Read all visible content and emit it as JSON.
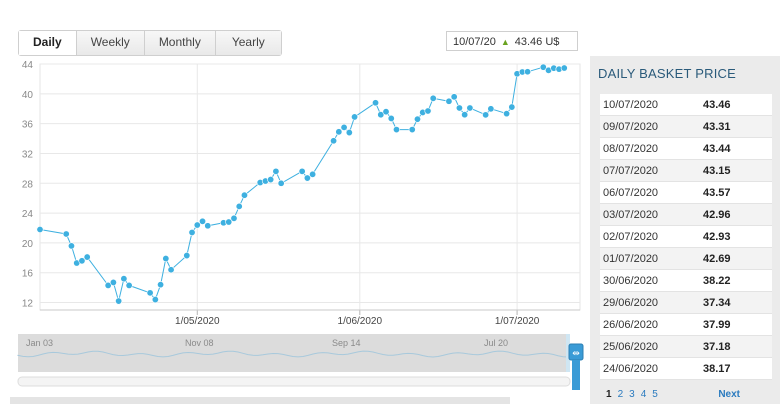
{
  "tabs": [
    {
      "label": "Daily",
      "active": true
    },
    {
      "label": "Weekly",
      "active": false
    },
    {
      "label": "Monthly",
      "active": false
    },
    {
      "label": "Yearly",
      "active": false
    }
  ],
  "price_box": {
    "date": "10/07/20",
    "value": "43.46 U$",
    "trend_icon": "triangle-up-icon",
    "trend_color": "#6aa321"
  },
  "chart_data": {
    "type": "line",
    "series_color": "#3eb0e0",
    "ylim": [
      11,
      44
    ],
    "yticks": [
      12,
      16,
      20,
      24,
      28,
      32,
      36,
      40,
      44
    ],
    "xlim": [
      "2020-04-01",
      "2020-07-13"
    ],
    "xticks": [
      {
        "date": "2020-05-01",
        "label": "1/05/2020"
      },
      {
        "date": "2020-06-01",
        "label": "1/06/2020"
      },
      {
        "date": "2020-07-01",
        "label": "1/07/2020"
      }
    ],
    "grid": true,
    "points": [
      [
        "2020-04-01",
        21.8
      ],
      [
        "2020-04-06",
        21.2
      ],
      [
        "2020-04-07",
        19.6
      ],
      [
        "2020-04-08",
        17.3
      ],
      [
        "2020-04-09",
        17.6
      ],
      [
        "2020-04-10",
        18.1
      ],
      [
        "2020-04-14",
        14.3
      ],
      [
        "2020-04-15",
        14.7
      ],
      [
        "2020-04-16",
        12.2
      ],
      [
        "2020-04-17",
        15.2
      ],
      [
        "2020-04-18",
        14.3
      ],
      [
        "2020-04-22",
        13.3
      ],
      [
        "2020-04-23",
        12.4
      ],
      [
        "2020-04-24",
        14.4
      ],
      [
        "2020-04-25",
        17.9
      ],
      [
        "2020-04-26",
        16.4
      ],
      [
        "2020-04-29",
        18.3
      ],
      [
        "2020-04-30",
        21.4
      ],
      [
        "2020-05-01",
        22.4
      ],
      [
        "2020-05-02",
        22.9
      ],
      [
        "2020-05-03",
        22.3
      ],
      [
        "2020-05-06",
        22.7
      ],
      [
        "2020-05-07",
        22.8
      ],
      [
        "2020-05-08",
        23.3
      ],
      [
        "2020-05-09",
        24.9
      ],
      [
        "2020-05-10",
        26.4
      ],
      [
        "2020-05-13",
        28.1
      ],
      [
        "2020-05-14",
        28.3
      ],
      [
        "2020-05-15",
        28.5
      ],
      [
        "2020-05-16",
        29.6
      ],
      [
        "2020-05-17",
        28.0
      ],
      [
        "2020-05-21",
        29.6
      ],
      [
        "2020-05-22",
        28.7
      ],
      [
        "2020-05-23",
        29.2
      ],
      [
        "2020-05-27",
        33.7
      ],
      [
        "2020-05-28",
        34.9
      ],
      [
        "2020-05-29",
        35.5
      ],
      [
        "2020-05-30",
        34.8
      ],
      [
        "2020-05-31",
        36.9
      ],
      [
        "2020-06-04",
        38.8
      ],
      [
        "2020-06-05",
        37.2
      ],
      [
        "2020-06-06",
        37.6
      ],
      [
        "2020-06-07",
        36.7
      ],
      [
        "2020-06-08",
        35.2
      ],
      [
        "2020-06-11",
        35.2
      ],
      [
        "2020-06-12",
        36.6
      ],
      [
        "2020-06-13",
        37.5
      ],
      [
        "2020-06-14",
        37.7
      ],
      [
        "2020-06-15",
        39.4
      ],
      [
        "2020-06-18",
        39.0
      ],
      [
        "2020-06-19",
        39.6
      ],
      [
        "2020-06-20",
        38.1
      ],
      [
        "2020-06-21",
        37.2
      ],
      [
        "2020-06-22",
        38.1
      ],
      [
        "2020-06-25",
        37.18
      ],
      [
        "2020-06-26",
        37.99
      ],
      [
        "2020-06-29",
        37.34
      ],
      [
        "2020-06-30",
        38.22
      ],
      [
        "2020-07-01",
        42.69
      ],
      [
        "2020-07-02",
        42.93
      ],
      [
        "2020-07-03",
        42.96
      ],
      [
        "2020-07-06",
        43.57
      ],
      [
        "2020-07-07",
        43.15
      ],
      [
        "2020-07-08",
        43.44
      ],
      [
        "2020-07-09",
        43.31
      ],
      [
        "2020-07-10",
        43.46
      ]
    ]
  },
  "navigator": {
    "labels": [
      "Jan 03",
      "Nov 08",
      "Sep 14",
      "Jul 20"
    ]
  },
  "panel": {
    "title": "DAILY BASKET PRICE",
    "rows": [
      {
        "date": "10/07/2020",
        "value": "43.46"
      },
      {
        "date": "09/07/2020",
        "value": "43.31"
      },
      {
        "date": "08/07/2020",
        "value": "43.44"
      },
      {
        "date": "07/07/2020",
        "value": "43.15"
      },
      {
        "date": "06/07/2020",
        "value": "43.57"
      },
      {
        "date": "03/07/2020",
        "value": "42.96"
      },
      {
        "date": "02/07/2020",
        "value": "42.93"
      },
      {
        "date": "01/07/2020",
        "value": "42.69"
      },
      {
        "date": "30/06/2020",
        "value": "38.22"
      },
      {
        "date": "29/06/2020",
        "value": "37.34"
      },
      {
        "date": "26/06/2020",
        "value": "37.99"
      },
      {
        "date": "25/06/2020",
        "value": "37.18"
      },
      {
        "date": "24/06/2020",
        "value": "38.17"
      }
    ],
    "pages": [
      "1",
      "2",
      "3",
      "4",
      "5"
    ],
    "next_label": "Next"
  }
}
